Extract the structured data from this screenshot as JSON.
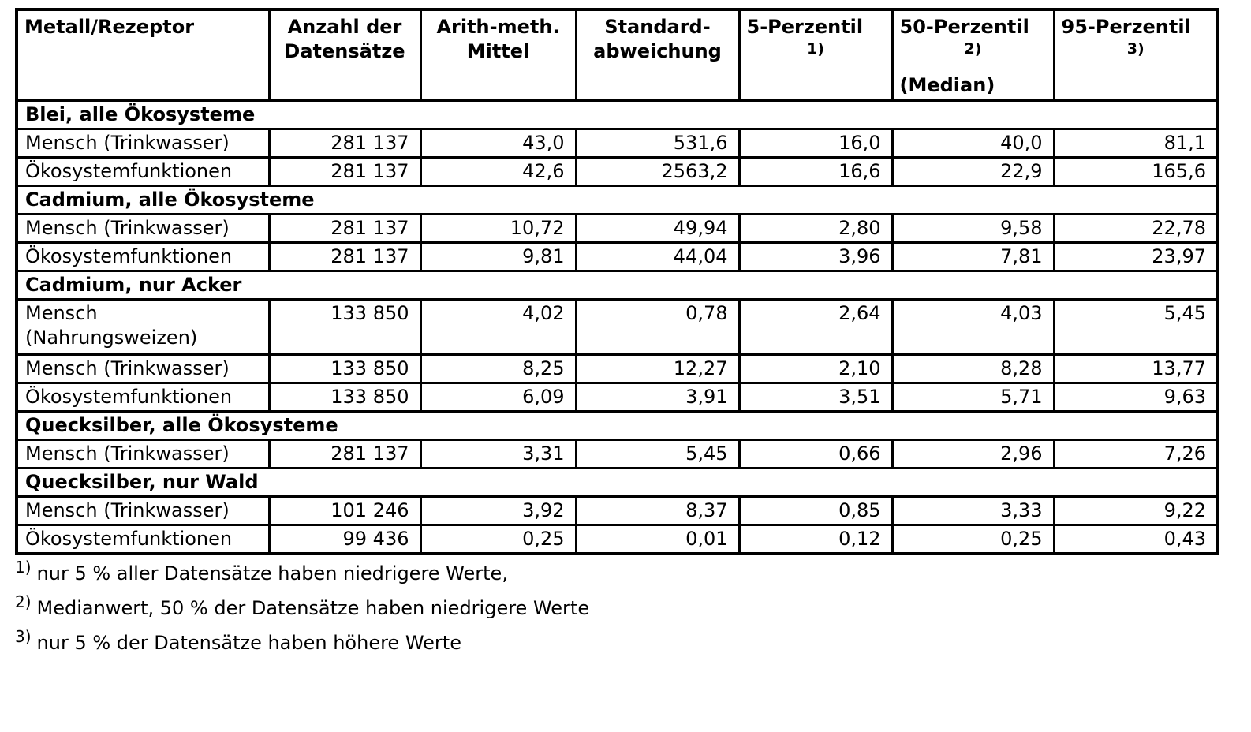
{
  "table": {
    "columns": [
      {
        "id": "metall",
        "label_lines": [
          "Metall/Rezeptor"
        ],
        "align": "left"
      },
      {
        "id": "anzahl",
        "label_lines": [
          "Anzahl der",
          "Datensätze"
        ],
        "align": "center"
      },
      {
        "id": "mittel",
        "label_lines": [
          "Arith-meth.",
          "Mittel"
        ],
        "align": "center"
      },
      {
        "id": "stdabw",
        "label_lines": [
          "Standard-",
          "abweichung"
        ],
        "align": "center"
      },
      {
        "id": "p5",
        "label_lines": [
          "5-Perzentil"
        ],
        "footnote_mark": "1)",
        "align": "left"
      },
      {
        "id": "p50",
        "label_lines": [
          "50-Perzentil"
        ],
        "footnote_mark": "2)",
        "sublabel": "(Median)",
        "align": "left"
      },
      {
        "id": "p95",
        "label_lines": [
          "95-Perzentil"
        ],
        "footnote_mark": "3)",
        "align": "left"
      }
    ],
    "sections": [
      {
        "title": "Blei, alle Ökosysteme",
        "rows": [
          {
            "label_lines": [
              "Mensch (Trinkwasser)"
            ],
            "values": [
              "281 137",
              "43,0",
              "531,6",
              "16,0",
              "40,0",
              "81,1"
            ]
          },
          {
            "label_lines": [
              "Ökosystemfunktionen"
            ],
            "values": [
              "281 137",
              "42,6",
              "2563,2",
              "16,6",
              "22,9",
              "165,6"
            ]
          }
        ]
      },
      {
        "title": "Cadmium, alle Ökosysteme",
        "rows": [
          {
            "label_lines": [
              "Mensch (Trinkwasser)"
            ],
            "values": [
              "281 137",
              "10,72",
              "49,94",
              "2,80",
              "9,58",
              "22,78"
            ]
          },
          {
            "label_lines": [
              "Ökosystemfunktionen"
            ],
            "values": [
              "281 137",
              "9,81",
              "44,04",
              "3,96",
              "7,81",
              "23,97"
            ]
          }
        ]
      },
      {
        "title": "Cadmium, nur Acker",
        "rows": [
          {
            "label_lines": [
              "Mensch",
              "(Nahrungsweizen)"
            ],
            "values": [
              "133 850",
              "4,02",
              "0,78",
              "2,64",
              "4,03",
              "5,45"
            ]
          },
          {
            "label_lines": [
              "Mensch (Trinkwasser)"
            ],
            "values": [
              "133 850",
              "8,25",
              "12,27",
              "2,10",
              "8,28",
              "13,77"
            ]
          },
          {
            "label_lines": [
              "Ökosystemfunktionen"
            ],
            "values": [
              "133 850",
              "6,09",
              "3,91",
              "3,51",
              "5,71",
              "9,63"
            ]
          }
        ]
      },
      {
        "title": "Quecksilber, alle Ökosysteme",
        "rows": [
          {
            "label_lines": [
              "Mensch (Trinkwasser)"
            ],
            "values": [
              "281 137",
              "3,31",
              "5,45",
              "0,66",
              "2,96",
              "7,26"
            ]
          }
        ]
      },
      {
        "title": "Quecksilber, nur Wald",
        "rows": [
          {
            "label_lines": [
              "Mensch (Trinkwasser)"
            ],
            "values": [
              "101 246",
              "3,92",
              "8,37",
              "0,85",
              "3,33",
              "9,22"
            ]
          },
          {
            "label_lines": [
              "Ökosystemfunktionen"
            ],
            "values": [
              "99 436",
              "0,25",
              "0,01",
              "0,12",
              "0,25",
              "0,43"
            ]
          }
        ]
      }
    ]
  },
  "footnotes": [
    {
      "mark": "1)",
      "text": "nur 5 % aller Datensätze haben niedrigere Werte,"
    },
    {
      "mark": "2)",
      "text": "Medianwert, 50 % der Datensätze haben niedrigere Werte"
    },
    {
      "mark": "3)",
      "text": "nur 5 % der Datensätze haben höhere Werte"
    }
  ],
  "colors": {
    "text": "#000000",
    "border": "#000000",
    "background": "#ffffff"
  }
}
